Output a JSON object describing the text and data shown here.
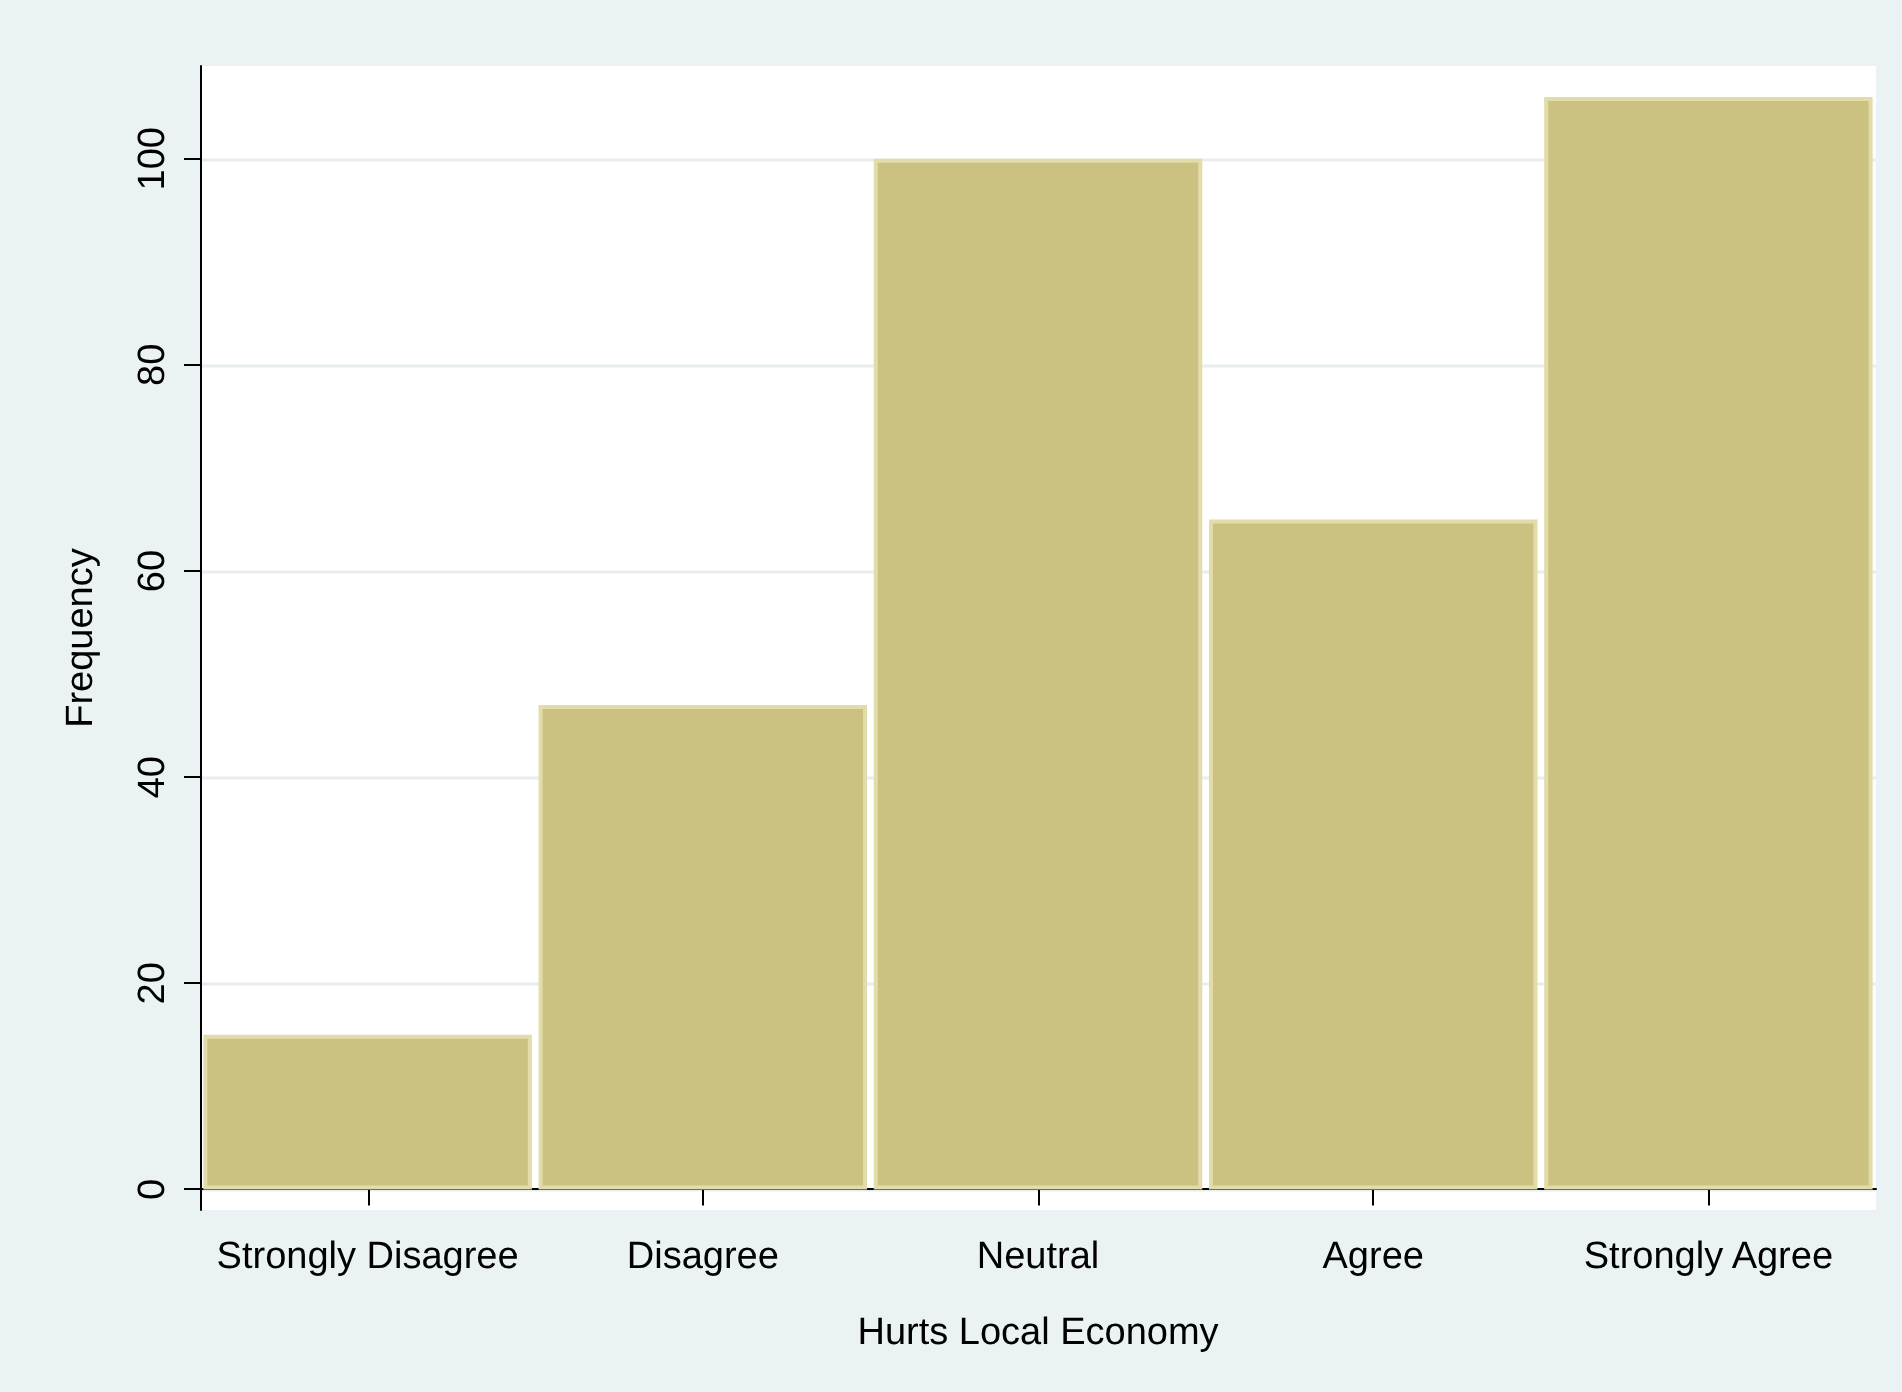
{
  "chart_data": {
    "type": "bar",
    "xlabel": "Hurts Local Economy",
    "ylabel": "Frequency",
    "categories": [
      "Strongly Disagree",
      "Disagree",
      "Neutral",
      "Agree",
      "Strongly Agree"
    ],
    "values": [
      15,
      47,
      100,
      65,
      106
    ],
    "color": "#cbc282",
    "ylim": [
      -2,
      109
    ],
    "yticks": [
      0,
      20,
      40,
      60,
      80,
      100
    ],
    "grid": "y"
  }
}
